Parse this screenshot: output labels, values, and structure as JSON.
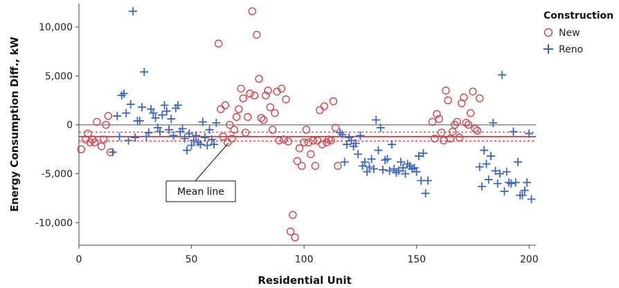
{
  "chart_data": {
    "type": "scatter",
    "title": "",
    "xlabel": "Residential Unit",
    "ylabel": "Energy Consumption Diff., kW",
    "xlim": [
      0,
      203
    ],
    "ylim": [
      -12300,
      12400
    ],
    "x_ticks": [
      0,
      50,
      100,
      150,
      200
    ],
    "x_tick_labels": [
      "0",
      "50",
      "100",
      "150",
      "200"
    ],
    "y_ticks": [
      10000,
      5000,
      0,
      -5000,
      -10000
    ],
    "y_tick_labels": [
      "10,000",
      "5,000",
      "0",
      "-5,000",
      "-10,000"
    ],
    "grid": false,
    "legend": {
      "title": "Construction",
      "placement": "right"
    },
    "mean_line": {
      "value": -1200,
      "lower": -1650,
      "upper": -750,
      "color": "#d9262f",
      "label": "Mean line"
    },
    "zero_line": {
      "value": 0,
      "color": "#888888"
    },
    "series": [
      {
        "name": "New",
        "marker": "circle",
        "color": "#d4404a",
        "points": [
          [
            1,
            -2500
          ],
          [
            3,
            -1500
          ],
          [
            4,
            -900
          ],
          [
            5,
            -1800
          ],
          [
            6,
            -1500
          ],
          [
            7,
            -1800
          ],
          [
            8,
            300
          ],
          [
            10,
            -2200
          ],
          [
            11,
            -1500
          ],
          [
            12,
            0
          ],
          [
            13,
            900
          ],
          [
            14,
            -2800
          ],
          [
            62,
            8300
          ],
          [
            63,
            1600
          ],
          [
            64,
            -1200
          ],
          [
            65,
            2000
          ],
          [
            66,
            -1800
          ],
          [
            67,
            0
          ],
          [
            68,
            -1400
          ],
          [
            69,
            -500
          ],
          [
            70,
            800
          ],
          [
            71,
            1600
          ],
          [
            72,
            3700
          ],
          [
            73,
            2700
          ],
          [
            74,
            -800
          ],
          [
            75,
            800
          ],
          [
            76,
            3200
          ],
          [
            77,
            11600
          ],
          [
            78,
            3000
          ],
          [
            79,
            9200
          ],
          [
            80,
            4700
          ],
          [
            81,
            700
          ],
          [
            82,
            500
          ],
          [
            83,
            3000
          ],
          [
            84,
            3500
          ],
          [
            85,
            1800
          ],
          [
            86,
            -500
          ],
          [
            87,
            1200
          ],
          [
            88,
            3400
          ],
          [
            89,
            -1600
          ],
          [
            90,
            3700
          ],
          [
            91,
            -1500
          ],
          [
            92,
            2600
          ],
          [
            93,
            -1700
          ],
          [
            94,
            -10900
          ],
          [
            95,
            -9200
          ],
          [
            96,
            -11500
          ],
          [
            97,
            -3700
          ],
          [
            98,
            -2400
          ],
          [
            99,
            -4200
          ],
          [
            100,
            -1800
          ],
          [
            101,
            -500
          ],
          [
            102,
            -1800
          ],
          [
            103,
            -3000
          ],
          [
            104,
            -1600
          ],
          [
            105,
            -4200
          ],
          [
            106,
            -1600
          ],
          [
            107,
            1500
          ],
          [
            108,
            -2000
          ],
          [
            109,
            1900
          ],
          [
            110,
            -1800
          ],
          [
            111,
            -1500
          ],
          [
            112,
            -1600
          ],
          [
            113,
            2400
          ],
          [
            114,
            -300
          ],
          [
            115,
            -4200
          ],
          [
            157,
            300
          ],
          [
            158,
            -1400
          ],
          [
            159,
            1100
          ],
          [
            160,
            600
          ],
          [
            161,
            -800
          ],
          [
            162,
            -1600
          ],
          [
            163,
            3500
          ],
          [
            164,
            2500
          ],
          [
            165,
            -1400
          ],
          [
            166,
            -700
          ],
          [
            167,
            0
          ],
          [
            168,
            300
          ],
          [
            169,
            -1300
          ],
          [
            170,
            2200
          ],
          [
            171,
            2800
          ],
          [
            172,
            200
          ],
          [
            173,
            0
          ],
          [
            174,
            1200
          ],
          [
            175,
            3400
          ],
          [
            176,
            -400
          ],
          [
            177,
            -600
          ],
          [
            178,
            2700
          ]
        ]
      },
      {
        "name": "Reno",
        "marker": "plus",
        "color": "#3a66c4",
        "points": [
          [
            15,
            -2800
          ],
          [
            17,
            900
          ],
          [
            18,
            -1200
          ],
          [
            19,
            3000
          ],
          [
            20,
            3200
          ],
          [
            21,
            1200
          ],
          [
            22,
            -1600
          ],
          [
            23,
            2100
          ],
          [
            24,
            11600
          ],
          [
            25,
            -1300
          ],
          [
            26,
            400
          ],
          [
            27,
            400
          ],
          [
            28,
            1800
          ],
          [
            29,
            5400
          ],
          [
            30,
            -1200
          ],
          [
            31,
            -800
          ],
          [
            32,
            1600
          ],
          [
            33,
            1200
          ],
          [
            34,
            700
          ],
          [
            35,
            -300
          ],
          [
            36,
            -700
          ],
          [
            37,
            1000
          ],
          [
            38,
            2000
          ],
          [
            39,
            1400
          ],
          [
            40,
            -500
          ],
          [
            41,
            600
          ],
          [
            42,
            -1100
          ],
          [
            43,
            1700
          ],
          [
            44,
            2000
          ],
          [
            45,
            -700
          ],
          [
            46,
            -400
          ],
          [
            47,
            -1400
          ],
          [
            48,
            -2600
          ],
          [
            49,
            -900
          ],
          [
            50,
            -2100
          ],
          [
            51,
            -1600
          ],
          [
            52,
            -1100
          ],
          [
            53,
            -1800
          ],
          [
            54,
            -2000
          ],
          [
            55,
            300
          ],
          [
            56,
            -1300
          ],
          [
            57,
            -2100
          ],
          [
            58,
            -500
          ],
          [
            59,
            -1500
          ],
          [
            60,
            -2000
          ],
          [
            61,
            200
          ],
          [
            116,
            -800
          ],
          [
            117,
            -1000
          ],
          [
            118,
            -3800
          ],
          [
            119,
            -2000
          ],
          [
            120,
            -1300
          ],
          [
            121,
            -1600
          ],
          [
            122,
            -2200
          ],
          [
            123,
            -1900
          ],
          [
            124,
            -3000
          ],
          [
            125,
            -1100
          ],
          [
            126,
            -4200
          ],
          [
            127,
            -3800
          ],
          [
            128,
            -4800
          ],
          [
            129,
            -4300
          ],
          [
            130,
            -3500
          ],
          [
            131,
            -4500
          ],
          [
            132,
            500
          ],
          [
            133,
            -2600
          ],
          [
            134,
            -300
          ],
          [
            135,
            -4600
          ],
          [
            136,
            -3600
          ],
          [
            137,
            -3500
          ],
          [
            138,
            -4700
          ],
          [
            139,
            -2000
          ],
          [
            140,
            -4500
          ],
          [
            141,
            -4900
          ],
          [
            142,
            -4700
          ],
          [
            143,
            -3800
          ],
          [
            144,
            -4400
          ],
          [
            145,
            -5000
          ],
          [
            146,
            -4000
          ],
          [
            147,
            -4200
          ],
          [
            148,
            -4500
          ],
          [
            149,
            -4400
          ],
          [
            150,
            -4800
          ],
          [
            151,
            -3200
          ],
          [
            152,
            -5700
          ],
          [
            153,
            -2900
          ],
          [
            154,
            -7000
          ],
          [
            155,
            -5700
          ],
          [
            178,
            -4300
          ],
          [
            179,
            -6300
          ],
          [
            180,
            -2600
          ],
          [
            181,
            -4000
          ],
          [
            182,
            -5600
          ],
          [
            183,
            -3200
          ],
          [
            184,
            200
          ],
          [
            185,
            -4700
          ],
          [
            186,
            -6000
          ],
          [
            187,
            -5000
          ],
          [
            188,
            5100
          ],
          [
            189,
            -6800
          ],
          [
            190,
            -4800
          ],
          [
            191,
            -5900
          ],
          [
            192,
            -6000
          ],
          [
            193,
            -700
          ],
          [
            194,
            -5900
          ],
          [
            195,
            -3800
          ],
          [
            196,
            -7200
          ],
          [
            197,
            -7200
          ],
          [
            198,
            -6700
          ],
          [
            199,
            -5900
          ],
          [
            200,
            -900
          ],
          [
            201,
            -7600
          ]
        ]
      }
    ]
  }
}
